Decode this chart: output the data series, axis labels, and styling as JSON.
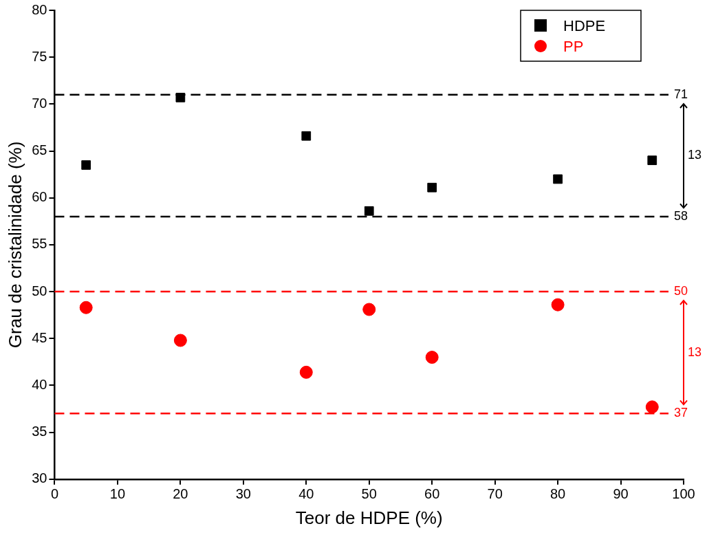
{
  "chart_data": {
    "type": "scatter",
    "xlabel": "Teor de HDPE (%)",
    "ylabel": "Grau de cristalinidade (%)",
    "x": [
      5,
      20,
      40,
      50,
      60,
      80,
      95
    ],
    "series": [
      {
        "name": "HDPE",
        "color": "#000000",
        "marker": "square",
        "values": [
          63.5,
          70.7,
          66.6,
          58.6,
          61.1,
          62.0,
          64.0
        ]
      },
      {
        "name": "PP",
        "color": "#ff0000",
        "marker": "circle",
        "values": [
          48.3,
          44.8,
          41.4,
          48.1,
          43.0,
          48.6,
          37.7
        ]
      }
    ],
    "xlim": [
      0,
      100
    ],
    "xticks": [
      0,
      10,
      20,
      30,
      40,
      50,
      60,
      70,
      80,
      90,
      100
    ],
    "ylim": [
      30,
      80
    ],
    "yticks": [
      30,
      35,
      40,
      45,
      50,
      55,
      60,
      65,
      70,
      75,
      80
    ],
    "grid": false,
    "legend": "top right",
    "ref_lines": [
      {
        "axis": "y",
        "value": 71,
        "label": "71",
        "color": "#000000",
        "line_style": "dashed"
      },
      {
        "axis": "y",
        "value": 58,
        "label": "58",
        "color": "#000000",
        "line_style": "dashed"
      },
      {
        "axis": "y",
        "value": 50,
        "label": "50",
        "color": "#ff0000",
        "line_style": "dashed"
      },
      {
        "axis": "y",
        "value": 37,
        "label": "37",
        "color": "#ff0000",
        "line_style": "dashed"
      }
    ],
    "annotations": [
      "13",
      "13"
    ]
  }
}
